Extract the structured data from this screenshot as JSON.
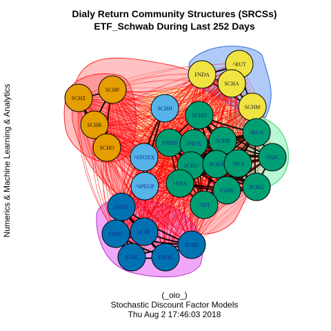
{
  "title_line1": "Dialy Return Community Structures (SRCSs)",
  "title_line2": "ETF_Schwab During Last 252 Days",
  "ylabel": "Numerics & Machine Learning & Analytics",
  "footer_line1": "(_oio_)",
  "footer_line2": "Stochastic Discount Factor Models",
  "footer_line3": "Thu Aug  2 17:46:03 2018",
  "colors": {
    "orange": "#e69f00",
    "yellow": "#f0e442",
    "skyblue": "#56b4e9",
    "green": "#009e73",
    "blue": "#0072b2",
    "edge": "#ff0000",
    "hull_red": "#ff4d4d",
    "hull_blue": "#6f9ff0",
    "hull_green": "#7ff2ad",
    "hull_magenta": "#e060f0",
    "hull_yellow": "#f2ef8a"
  },
  "communities": [
    {
      "name": "orange",
      "nodes": [
        "SCHZ",
        "SCHP",
        "SCHR",
        "SCHO"
      ]
    },
    {
      "name": "yellow",
      "nodes": [
        "FNDA",
        "^RUT",
        "SCHA",
        "SCHM"
      ]
    },
    {
      "name": "skyblue",
      "nodes": [
        "SCHH",
        "^STOXX",
        "^SPEUP"
      ]
    },
    {
      "name": "green",
      "nodes": [
        "SCHD",
        "FNDB",
        "FNDX",
        "SCHB",
        "^RUA",
        "SCHV",
        "SCHX",
        "^RUI",
        "^IXIC",
        "^NYA",
        "^GSPC",
        "SCHG",
        "^DJI"
      ]
    },
    {
      "name": "blue",
      "nodes": [
        "FNDF",
        "FNDC",
        "SCHF",
        "SCHE",
        "SCHC",
        "FNDE"
      ]
    }
  ]
}
